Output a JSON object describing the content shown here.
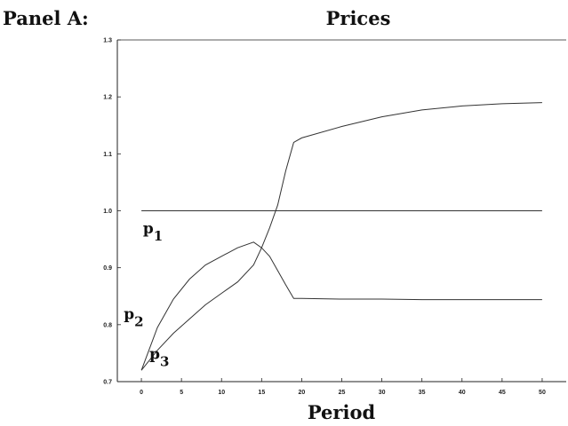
{
  "chart_data": {
    "type": "line",
    "panel_label": "Panel A:",
    "title": "Prices",
    "xlabel": "Period",
    "ylabel": "",
    "xlim": [
      -3,
      53
    ],
    "ylim": [
      0.7,
      1.3
    ],
    "x_ticks": [
      0,
      5,
      10,
      15,
      20,
      25,
      30,
      35,
      40,
      45,
      50
    ],
    "y_ticks": [
      0.7,
      0.8,
      0.9,
      1.0,
      1.1,
      1.2,
      1.3
    ],
    "y_tick_labels": [
      "0.7",
      "0.8",
      "0.9",
      "1.0",
      "1.1",
      "1.2",
      "1.3"
    ],
    "grid": false,
    "series": [
      {
        "name": "p",
        "subscript": "1",
        "label_anchor": [
          0.2,
          0.96
        ],
        "x": [
          0,
          50
        ],
        "y": [
          1.0,
          1.0
        ]
      },
      {
        "name": "p",
        "subscript": "2",
        "label_anchor": [
          -2.2,
          0.81
        ],
        "x": [
          0,
          2,
          4,
          6,
          8,
          10,
          12,
          14,
          15,
          16,
          17,
          18,
          19,
          20,
          25,
          30,
          35,
          40,
          45,
          50
        ],
        "y": [
          0.72,
          0.795,
          0.845,
          0.88,
          0.905,
          0.92,
          0.935,
          0.945,
          0.935,
          0.92,
          0.895,
          0.87,
          0.846,
          0.846,
          0.845,
          0.845,
          0.844,
          0.844,
          0.844,
          0.844
        ]
      },
      {
        "name": "p",
        "subscript": "3",
        "label_anchor": [
          1.0,
          0.74
        ],
        "x": [
          0,
          2,
          4,
          6,
          8,
          10,
          12,
          14,
          15,
          16,
          17,
          18,
          19,
          20,
          25,
          30,
          35,
          40,
          45,
          50
        ],
        "y": [
          0.72,
          0.755,
          0.785,
          0.81,
          0.835,
          0.855,
          0.875,
          0.905,
          0.935,
          0.97,
          1.01,
          1.07,
          1.12,
          1.128,
          1.148,
          1.165,
          1.177,
          1.184,
          1.188,
          1.19
        ]
      }
    ]
  }
}
